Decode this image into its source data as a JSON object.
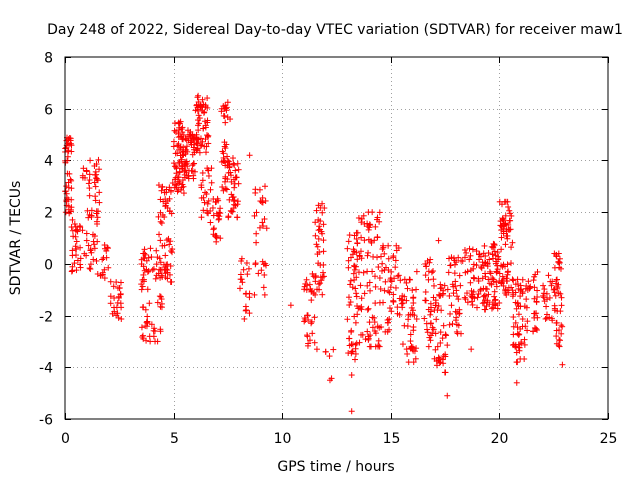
{
  "chart_data": {
    "type": "scatter",
    "title": "Day 248 of 2022, Sidereal Day-to-day VTEC variation (SDTVAR) for receiver maw1",
    "xlabel": "GPS time / hours",
    "ylabel": "SDTVAR / TECUs",
    "xlim": [
      0,
      25
    ],
    "ylim": [
      -6,
      8
    ],
    "xticks": [
      0,
      5,
      10,
      15,
      20,
      25
    ],
    "yticks": [
      -6,
      -4,
      -2,
      0,
      2,
      4,
      6,
      8
    ],
    "grid": true,
    "marker": "+",
    "color": "#ff0000",
    "seed": 248,
    "series": [
      {
        "name": "maw1",
        "clusters": [
          {
            "x": [
              0.0,
              0.3
            ],
            "y": [
              2.0,
              4.8
            ],
            "n": 45,
            "spread": 0.6
          },
          {
            "x": [
              0.3,
              0.8
            ],
            "y": [
              -0.2,
              1.5
            ],
            "n": 30,
            "spread": 0.6
          },
          {
            "x": [
              0.8,
              1.5
            ],
            "y": [
              0.0,
              3.8
            ],
            "n": 45,
            "spread": 0.9
          },
          {
            "x": [
              1.4,
              1.6
            ],
            "y": [
              2.0,
              4.0
            ],
            "n": 15,
            "spread": 0.6
          },
          {
            "x": [
              1.5,
              2.0
            ],
            "y": [
              -0.6,
              0.8
            ],
            "n": 15,
            "spread": 0.4
          },
          {
            "x": [
              2.1,
              2.6
            ],
            "y": [
              -2.0,
              -0.8
            ],
            "n": 25,
            "spread": 0.4
          },
          {
            "x": [
              3.5,
              4.5
            ],
            "y": [
              -2.8,
              0.4
            ],
            "n": 70,
            "spread": 0.8
          },
          {
            "x": [
              4.3,
              5.0
            ],
            "y": [
              -0.5,
              3.0
            ],
            "n": 60,
            "spread": 0.6
          },
          {
            "x": [
              5.0,
              5.5
            ],
            "y": [
              2.8,
              5.3
            ],
            "n": 70,
            "spread": 0.6
          },
          {
            "x": [
              5.5,
              6.0
            ],
            "y": [
              3.5,
              5.0
            ],
            "n": 50,
            "spread": 0.6
          },
          {
            "x": [
              6.0,
              6.6
            ],
            "y": [
              4.5,
              6.3
            ],
            "n": 60,
            "spread": 0.6
          },
          {
            "x": [
              6.2,
              6.8
            ],
            "y": [
              1.8,
              3.5
            ],
            "n": 25,
            "spread": 0.8
          },
          {
            "x": [
              6.8,
              7.2
            ],
            "y": [
              1.0,
              2.5
            ],
            "n": 25,
            "spread": 0.7
          },
          {
            "x": [
              7.2,
              7.5
            ],
            "y": [
              3.0,
              6.3
            ],
            "n": 35,
            "spread": 0.8
          },
          {
            "x": [
              7.5,
              8.0
            ],
            "y": [
              2.0,
              4.0
            ],
            "n": 40,
            "spread": 0.7
          },
          {
            "x": [
              8.0,
              8.5
            ],
            "y": [
              -2.0,
              0.0
            ],
            "n": 20,
            "spread": 0.6
          },
          {
            "x": [
              8.7,
              9.3
            ],
            "y": [
              -1.0,
              3.0
            ],
            "n": 30,
            "spread": 0.8
          },
          {
            "x": [
              11.0,
              11.5
            ],
            "y": [
              -3.0,
              -0.5
            ],
            "n": 30,
            "spread": 0.6
          },
          {
            "x": [
              11.5,
              12.0
            ],
            "y": [
              -1.0,
              2.2
            ],
            "n": 40,
            "spread": 0.8
          },
          {
            "x": [
              12.0,
              12.5
            ],
            "y": [
              -4.4,
              -3.0
            ],
            "n": 4,
            "spread": 0.3
          },
          {
            "x": [
              13.0,
              13.5
            ],
            "y": [
              -3.5,
              1.0
            ],
            "n": 55,
            "spread": 1.0
          },
          {
            "x": [
              13.5,
              14.5
            ],
            "y": [
              -3.0,
              1.8
            ],
            "n": 80,
            "spread": 1.0
          },
          {
            "x": [
              14.5,
              15.0
            ],
            "y": [
              -2.5,
              0.5
            ],
            "n": 30,
            "spread": 0.7
          },
          {
            "x": [
              15.0,
              15.5
            ],
            "y": [
              -2.0,
              0.5
            ],
            "n": 25,
            "spread": 0.7
          },
          {
            "x": [
              15.5,
              16.2
            ],
            "y": [
              -3.6,
              -0.8
            ],
            "n": 45,
            "spread": 0.9
          },
          {
            "x": [
              16.5,
              17.0
            ],
            "y": [
              -3.0,
              0.0
            ],
            "n": 35,
            "spread": 0.8
          },
          {
            "x": [
              17.0,
              17.6
            ],
            "y": [
              -4.0,
              -1.0
            ],
            "n": 45,
            "spread": 0.9
          },
          {
            "x": [
              17.6,
              18.3
            ],
            "y": [
              -2.5,
              0.2
            ],
            "n": 40,
            "spread": 0.8
          },
          {
            "x": [
              18.3,
              19.2
            ],
            "y": [
              -1.5,
              0.5
            ],
            "n": 45,
            "spread": 0.6
          },
          {
            "x": [
              19.2,
              20.0
            ],
            "y": [
              -1.6,
              0.6
            ],
            "n": 75,
            "spread": 0.6
          },
          {
            "x": [
              20.0,
              20.6
            ],
            "y": [
              -1.0,
              2.2
            ],
            "n": 70,
            "spread": 0.7
          },
          {
            "x": [
              20.6,
              21.2
            ],
            "y": [
              -3.6,
              -0.8
            ],
            "n": 55,
            "spread": 0.8
          },
          {
            "x": [
              21.2,
              21.8
            ],
            "y": [
              -2.5,
              -0.5
            ],
            "n": 30,
            "spread": 0.6
          },
          {
            "x": [
              22.0,
              22.5
            ],
            "y": [
              -2.2,
              -0.6
            ],
            "n": 20,
            "spread": 0.5
          },
          {
            "x": [
              22.5,
              22.9
            ],
            "y": [
              -3.0,
              0.2
            ],
            "n": 45,
            "spread": 0.8
          }
        ],
        "points": [
          {
            "x": 13.2,
            "y": -5.7
          },
          {
            "x": 12.2,
            "y": -4.5
          },
          {
            "x": 13.2,
            "y": -4.3
          },
          {
            "x": 17.6,
            "y": -5.1
          },
          {
            "x": 20.8,
            "y": -4.6
          },
          {
            "x": 22.9,
            "y": -3.9
          },
          {
            "x": 8.5,
            "y": 4.2
          },
          {
            "x": 3.6,
            "y": 0.4
          },
          {
            "x": 1.9,
            "y": 0.5
          },
          {
            "x": 7.6,
            "y": 5.6
          },
          {
            "x": 10.4,
            "y": -1.6
          },
          {
            "x": 11.6,
            "y": -3.3
          },
          {
            "x": 12.0,
            "y": -3.4
          },
          {
            "x": 16.2,
            "y": -0.3
          },
          {
            "x": 20.4,
            "y": 2.2
          },
          {
            "x": 18.7,
            "y": -3.3
          },
          {
            "x": 21.6,
            "y": -0.5
          },
          {
            "x": 17.2,
            "y": 0.9
          }
        ]
      }
    ]
  }
}
